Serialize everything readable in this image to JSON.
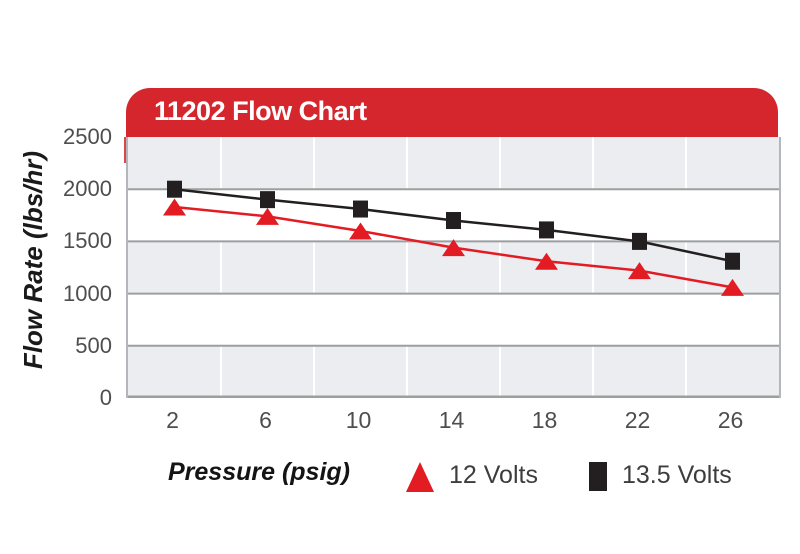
{
  "title": "11202 Flow Chart",
  "colors": {
    "banner_red": "#d5262d",
    "series_red": "#e31b23",
    "series_black": "#231f20",
    "band_gray": "#ebedf1",
    "hgrid_gray": "#9c9ea0",
    "vgrid_white": "#ffffff",
    "tick_text": "#4e4e50"
  },
  "chart_data": {
    "type": "line",
    "title": "11202 Flow Chart",
    "xlabel": "Pressure (psig)",
    "ylabel": "Flow Rate (lbs/hr)",
    "categories": [
      "2",
      "6",
      "10",
      "14",
      "18",
      "22",
      "26"
    ],
    "yticks": [
      "0",
      "500",
      "1000",
      "1500",
      "2000",
      "2500"
    ],
    "ylim": [
      0,
      2500
    ],
    "grid": "horizontal gray lines every 500; alternating gray/white bands; white vertical separators between categories",
    "legend_position": "bottom",
    "series": [
      {
        "name": "12 Volts",
        "marker": "triangle",
        "color": "#e31b23",
        "values": [
          1830,
          1740,
          1600,
          1440,
          1310,
          1220,
          1060
        ]
      },
      {
        "name": "13.5 Volts",
        "marker": "square",
        "color": "#231f20",
        "values": [
          2000,
          1900,
          1810,
          1700,
          1610,
          1500,
          1310
        ]
      }
    ]
  }
}
